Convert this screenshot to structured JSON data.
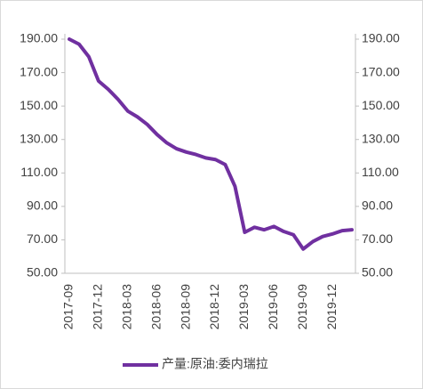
{
  "chart_data": {
    "type": "line",
    "categories": [
      "2017-09",
      null,
      null,
      "2017-12",
      null,
      null,
      "2018-03",
      null,
      null,
      "2018-06",
      null,
      null,
      "2018-09",
      null,
      null,
      "2018-12",
      null,
      null,
      "2019-03",
      null,
      null,
      "2019-06",
      null,
      null,
      "2019-09",
      null,
      null,
      "2019-12",
      null,
      null
    ],
    "series": [
      {
        "name": "产量:原油:委内瑞拉",
        "color": "#7030a0",
        "values": [
          190,
          187,
          179.5,
          165,
          160,
          154,
          147,
          143.5,
          139,
          133,
          128,
          124.5,
          122.5,
          121,
          119,
          118,
          115,
          102,
          74.5,
          77.5,
          76,
          78,
          75,
          73,
          64.5,
          69,
          72,
          73.5,
          75.5,
          76
        ]
      }
    ],
    "ylim": [
      50,
      190
    ],
    "yticks": [
      {
        "value": 50,
        "label": "50.00"
      },
      {
        "value": 70,
        "label": "70.00"
      },
      {
        "value": 90,
        "label": "90.00"
      },
      {
        "value": 110,
        "label": "110.00"
      },
      {
        "value": 130,
        "label": "130.00"
      },
      {
        "value": 150,
        "label": "150.00"
      },
      {
        "value": 170,
        "label": "170.00"
      },
      {
        "value": 190,
        "label": "190.00"
      }
    ],
    "y2lim": [
      50,
      190
    ],
    "y2ticks": [
      {
        "value": 50,
        "label": "50.00"
      },
      {
        "value": 70,
        "label": "70.00"
      },
      {
        "value": 90,
        "label": "90.00"
      },
      {
        "value": 110,
        "label": "110.00"
      },
      {
        "value": 130,
        "label": "130.00"
      },
      {
        "value": 150,
        "label": "150.00"
      },
      {
        "value": 170,
        "label": "170.00"
      },
      {
        "value": 190,
        "label": "190.00"
      }
    ],
    "legend": "bottom"
  }
}
